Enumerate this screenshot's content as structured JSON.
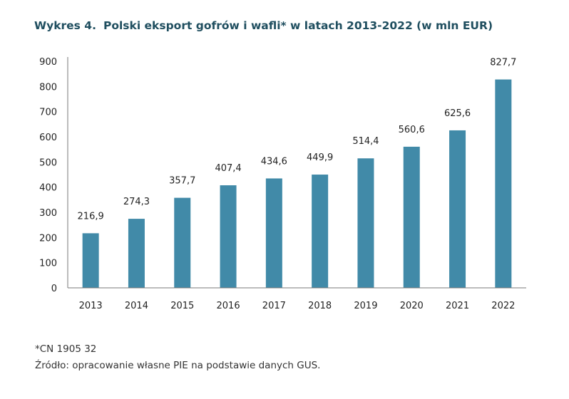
{
  "title": {
    "label": "Wykres 4.",
    "text": "Polski eksport gofrów i wafli* w latach 2013-2022 (w mln EUR)"
  },
  "chart_data": {
    "type": "bar",
    "categories": [
      "2013",
      "2014",
      "2015",
      "2016",
      "2017",
      "2018",
      "2019",
      "2020",
      "2021",
      "2022"
    ],
    "values": [
      216.9,
      274.3,
      357.7,
      407.4,
      434.6,
      449.9,
      514.4,
      560.6,
      625.6,
      827.7
    ],
    "value_labels": [
      "216,9",
      "274,3",
      "357,7",
      "407,4",
      "434,6",
      "449,9",
      "514,4",
      "560,6",
      "625,6",
      "827,7"
    ],
    "yticks": [
      0,
      100,
      200,
      300,
      400,
      500,
      600,
      700,
      800,
      900
    ],
    "ylim": [
      0,
      900
    ],
    "xlabel": "",
    "ylabel": "",
    "grid": false,
    "bar_color": "#418aa8"
  },
  "footer": {
    "note": "*CN 1905 32",
    "source": "Źródło: opracowanie własne PIE na podstawie danych GUS."
  }
}
